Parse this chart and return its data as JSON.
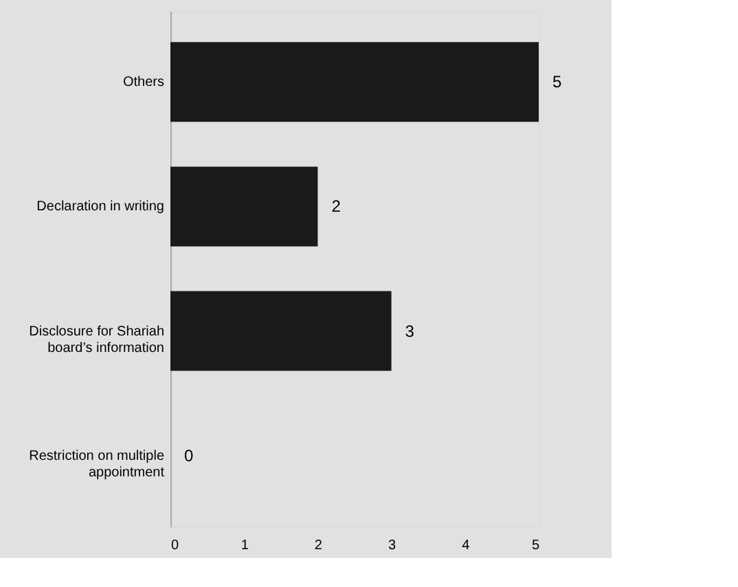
{
  "chart_data": {
    "type": "bar",
    "orientation": "horizontal",
    "categories": [
      "Others",
      "Declaration in writing",
      "Disclosure for Shariah board’s information",
      "Restriction on multiple appointment"
    ],
    "values": [
      5,
      2,
      3,
      0
    ],
    "color": "#1a1a1a",
    "data_labels": true,
    "xlim": [
      0,
      5
    ],
    "xticks": [
      0,
      1,
      2,
      3,
      4,
      5
    ]
  }
}
